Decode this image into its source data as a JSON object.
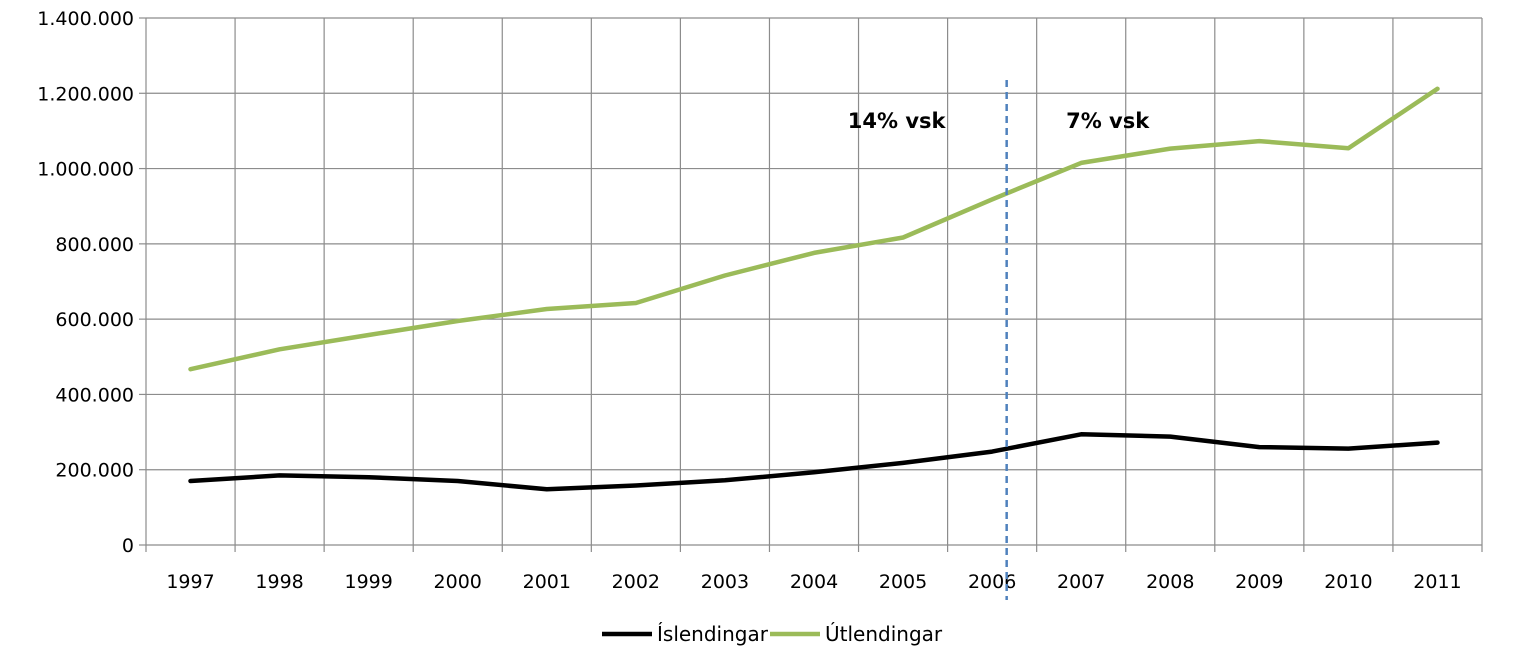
{
  "chart_data": {
    "type": "line",
    "x": [
      "1997",
      "1998",
      "1999",
      "2000",
      "2001",
      "2002",
      "2003",
      "2004",
      "2005",
      "2006",
      "2007",
      "2008",
      "2009",
      "2010",
      "2011"
    ],
    "series": [
      {
        "name": "Íslendingar",
        "color": "#000000",
        "values": [
          170000,
          185000,
          180000,
          170000,
          148000,
          158000,
          172000,
          193000,
          218000,
          248000,
          294000,
          288000,
          260000,
          256000,
          272000
        ]
      },
      {
        "name": "Útlendingar",
        "color": "#9BBB59",
        "values": [
          467000,
          520000,
          558000,
          595000,
          627000,
          643000,
          716000,
          776000,
          817000,
          918000,
          1015000,
          1053000,
          1073000,
          1054000,
          1212000
        ]
      }
    ],
    "yticks": [
      "0",
      "200.000",
      "400.000",
      "600.000",
      "800.000",
      "1.000.000",
      "1.200.000",
      "1.400.000"
    ],
    "ylim": [
      0,
      1400000
    ],
    "grid": true,
    "legend": "bottom",
    "annotations": {
      "before": "14% vsk",
      "after": "7% vsk",
      "divider_color": "#4F81BD"
    },
    "title": "",
    "xlabel": "",
    "ylabel": ""
  }
}
